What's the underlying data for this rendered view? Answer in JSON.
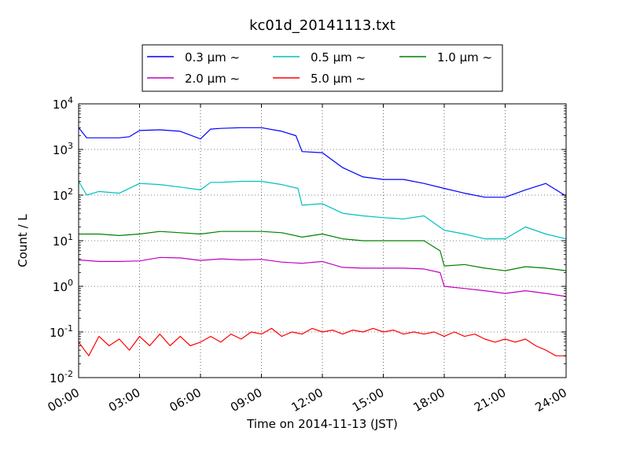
{
  "chart_data": {
    "type": "line",
    "title": "kc01d_20141113.txt",
    "xlabel": "Time on 2014-11-13 (JST)",
    "ylabel": "Count / L",
    "x_tick_labels": [
      "00:00",
      "03:00",
      "06:00",
      "09:00",
      "12:00",
      "15:00",
      "18:00",
      "21:00",
      "24:00"
    ],
    "y_tick_labels": [
      {
        "base": "10",
        "exp": "-2"
      },
      {
        "base": "10",
        "exp": "-1"
      },
      {
        "base": "10",
        "exp": "0"
      },
      {
        "base": "10",
        "exp": "1"
      },
      {
        "base": "10",
        "exp": "2"
      },
      {
        "base": "10",
        "exp": "3"
      },
      {
        "base": "10",
        "exp": "4"
      }
    ],
    "xlim": [
      "00:00",
      "24:00"
    ],
    "ylim": [
      0.01,
      10000
    ],
    "yscale": "log",
    "grid": true,
    "legend_position": "top, above plot",
    "series": [
      {
        "name": "0.3 µm ~",
        "color": "#0000ff",
        "points": [
          [
            0.0,
            3000
          ],
          [
            0.4,
            1800
          ],
          [
            1.0,
            1800
          ],
          [
            2.0,
            1800
          ],
          [
            2.5,
            1900
          ],
          [
            3.0,
            2600
          ],
          [
            4.0,
            2700
          ],
          [
            5.0,
            2500
          ],
          [
            6.0,
            1700
          ],
          [
            6.5,
            2800
          ],
          [
            7.0,
            2900
          ],
          [
            8.0,
            3000
          ],
          [
            9.0,
            3000
          ],
          [
            10.0,
            2500
          ],
          [
            10.7,
            2000
          ],
          [
            11.0,
            900
          ],
          [
            12.0,
            850
          ],
          [
            13.0,
            400
          ],
          [
            14.0,
            250
          ],
          [
            15.0,
            220
          ],
          [
            16.0,
            220
          ],
          [
            17.0,
            180
          ],
          [
            18.0,
            140
          ],
          [
            19.0,
            110
          ],
          [
            20.0,
            90
          ],
          [
            21.0,
            90
          ],
          [
            22.0,
            130
          ],
          [
            23.0,
            180
          ],
          [
            24.0,
            95
          ]
        ]
      },
      {
        "name": "0.5 µm ~",
        "color": "#00bfbf",
        "points": [
          [
            0.0,
            200
          ],
          [
            0.4,
            100
          ],
          [
            1.0,
            120
          ],
          [
            2.0,
            110
          ],
          [
            3.0,
            180
          ],
          [
            4.0,
            170
          ],
          [
            5.0,
            150
          ],
          [
            6.0,
            130
          ],
          [
            6.5,
            190
          ],
          [
            7.0,
            190
          ],
          [
            8.0,
            200
          ],
          [
            9.0,
            200
          ],
          [
            10.0,
            170
          ],
          [
            10.8,
            140
          ],
          [
            11.0,
            60
          ],
          [
            12.0,
            65
          ],
          [
            13.0,
            40
          ],
          [
            14.0,
            35
          ],
          [
            15.0,
            32
          ],
          [
            16.0,
            30
          ],
          [
            17.0,
            35
          ],
          [
            18.0,
            17
          ],
          [
            19.0,
            14
          ],
          [
            20.0,
            11
          ],
          [
            21.0,
            11
          ],
          [
            22.0,
            20
          ],
          [
            23.0,
            14
          ],
          [
            24.0,
            11
          ]
        ]
      },
      {
        "name": "1.0 µm ~",
        "color": "#008000",
        "points": [
          [
            0.0,
            14
          ],
          [
            1.0,
            14
          ],
          [
            2.0,
            13
          ],
          [
            3.0,
            14
          ],
          [
            4.0,
            16
          ],
          [
            5.0,
            15
          ],
          [
            6.0,
            14
          ],
          [
            7.0,
            16
          ],
          [
            8.0,
            16
          ],
          [
            9.0,
            16
          ],
          [
            10.0,
            15
          ],
          [
            11.0,
            12
          ],
          [
            12.0,
            14
          ],
          [
            13.0,
            11
          ],
          [
            14.0,
            10
          ],
          [
            15.0,
            10
          ],
          [
            16.0,
            10
          ],
          [
            17.0,
            10
          ],
          [
            17.8,
            6
          ],
          [
            18.0,
            2.8
          ],
          [
            19.0,
            3
          ],
          [
            20.0,
            2.5
          ],
          [
            21.0,
            2.2
          ],
          [
            22.0,
            2.7
          ],
          [
            23.0,
            2.5
          ],
          [
            24.0,
            2.2
          ]
        ]
      },
      {
        "name": "2.0 µm ~",
        "color": "#bf00bf",
        "points": [
          [
            0.0,
            3.8
          ],
          [
            1.0,
            3.5
          ],
          [
            2.0,
            3.5
          ],
          [
            3.0,
            3.6
          ],
          [
            4.0,
            4.3
          ],
          [
            5.0,
            4.2
          ],
          [
            6.0,
            3.7
          ],
          [
            7.0,
            4.0
          ],
          [
            8.0,
            3.8
          ],
          [
            9.0,
            3.9
          ],
          [
            10.0,
            3.4
          ],
          [
            11.0,
            3.2
          ],
          [
            12.0,
            3.5
          ],
          [
            13.0,
            2.6
          ],
          [
            14.0,
            2.5
          ],
          [
            15.0,
            2.5
          ],
          [
            16.0,
            2.5
          ],
          [
            17.0,
            2.4
          ],
          [
            17.8,
            2.0
          ],
          [
            18.0,
            1.0
          ],
          [
            19.0,
            0.9
          ],
          [
            20.0,
            0.8
          ],
          [
            21.0,
            0.7
          ],
          [
            22.0,
            0.8
          ],
          [
            23.0,
            0.7
          ],
          [
            24.0,
            0.6
          ]
        ]
      },
      {
        "name": "5.0 µm ~",
        "color": "#ff0000",
        "points": [
          [
            0.0,
            0.06
          ],
          [
            0.5,
            0.03
          ],
          [
            1.0,
            0.08
          ],
          [
            1.5,
            0.05
          ],
          [
            2.0,
            0.07
          ],
          [
            2.5,
            0.04
          ],
          [
            3.0,
            0.08
          ],
          [
            3.5,
            0.05
          ],
          [
            4.0,
            0.09
          ],
          [
            4.5,
            0.05
          ],
          [
            5.0,
            0.08
          ],
          [
            5.5,
            0.05
          ],
          [
            6.0,
            0.06
          ],
          [
            6.5,
            0.08
          ],
          [
            7.0,
            0.06
          ],
          [
            7.5,
            0.09
          ],
          [
            8.0,
            0.07
          ],
          [
            8.5,
            0.1
          ],
          [
            9.0,
            0.09
          ],
          [
            9.5,
            0.12
          ],
          [
            10.0,
            0.08
          ],
          [
            10.5,
            0.1
          ],
          [
            11.0,
            0.09
          ],
          [
            11.5,
            0.12
          ],
          [
            12.0,
            0.1
          ],
          [
            12.5,
            0.11
          ],
          [
            13.0,
            0.09
          ],
          [
            13.5,
            0.11
          ],
          [
            14.0,
            0.1
          ],
          [
            14.5,
            0.12
          ],
          [
            15.0,
            0.1
          ],
          [
            15.5,
            0.11
          ],
          [
            16.0,
            0.09
          ],
          [
            16.5,
            0.1
          ],
          [
            17.0,
            0.09
          ],
          [
            17.5,
            0.1
          ],
          [
            18.0,
            0.08
          ],
          [
            18.5,
            0.1
          ],
          [
            19.0,
            0.08
          ],
          [
            19.5,
            0.09
          ],
          [
            20.0,
            0.07
          ],
          [
            20.5,
            0.06
          ],
          [
            21.0,
            0.07
          ],
          [
            21.5,
            0.06
          ],
          [
            22.0,
            0.07
          ],
          [
            22.5,
            0.05
          ],
          [
            23.0,
            0.04
          ],
          [
            23.5,
            0.03
          ],
          [
            24.0,
            0.03
          ]
        ]
      }
    ]
  }
}
